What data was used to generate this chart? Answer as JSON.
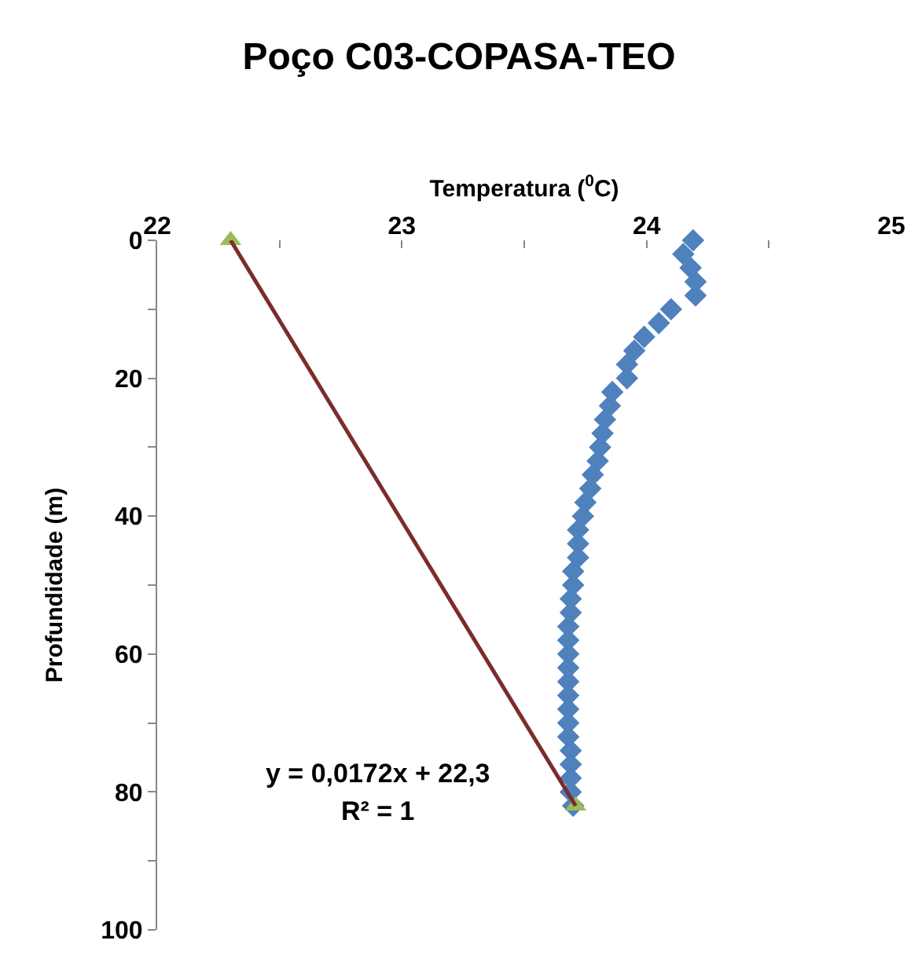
{
  "chart_data": {
    "type": "scatter",
    "title": "Poço C03-COPASA-TEO",
    "xlabel": "Temperatura ($^{0}$C)",
    "ylabel": "Profundidade (m)",
    "xlim": [
      22,
      25
    ],
    "xticks": [
      22,
      {
        "value": 22.5,
        "label": null
      },
      23,
      {
        "value": 23.5,
        "label": null
      },
      24,
      {
        "value": 24.5,
        "label": null
      },
      25
    ],
    "ylim": [
      100,
      0
    ],
    "yticks": [
      0,
      {
        "value": 10,
        "label": null
      },
      20,
      {
        "value": 30,
        "label": null
      },
      40,
      {
        "value": 50,
        "label": null
      },
      60,
      {
        "value": 70,
        "label": null
      },
      80,
      {
        "value": 90,
        "label": null
      },
      100
    ],
    "grid": false,
    "annotations": [
      "y = 0,0172x + 22,3",
      "R² = 1"
    ],
    "series": [
      {
        "marker": "diamond",
        "color": "#4f81bd",
        "x": [
          24.19,
          24.15,
          24.18,
          24.2,
          24.2,
          24.1,
          24.05,
          23.99,
          23.95,
          23.92,
          23.92,
          23.86,
          23.85,
          23.83,
          23.82,
          23.81,
          23.8,
          23.78,
          23.77,
          23.75,
          23.74,
          23.72,
          23.72,
          23.72,
          23.7,
          23.7,
          23.69,
          23.69,
          23.68,
          23.68,
          23.68,
          23.68,
          23.68,
          23.68,
          23.68,
          23.68,
          23.68,
          23.69,
          23.69,
          23.69,
          23.69,
          23.7
        ],
        "values": [
          0,
          2,
          4,
          6,
          8,
          10,
          12,
          14,
          16,
          18,
          20,
          22,
          24,
          26,
          28,
          30,
          32,
          34,
          36,
          38,
          40,
          42,
          44,
          46,
          48,
          50,
          52,
          54,
          56,
          58,
          60,
          62,
          64,
          66,
          68,
          70,
          72,
          74,
          76,
          78,
          80,
          82
        ]
      },
      {
        "marker": "triangle",
        "color": "#9bbb59",
        "x": [
          22.3,
          23.71
        ],
        "values": [
          0,
          82
        ]
      },
      {
        "type": "line",
        "marker": "none",
        "line_style": "solid",
        "color": "#7b2c2c",
        "x": [
          22.3,
          23.71
        ],
        "values": [
          0,
          82
        ]
      }
    ]
  }
}
